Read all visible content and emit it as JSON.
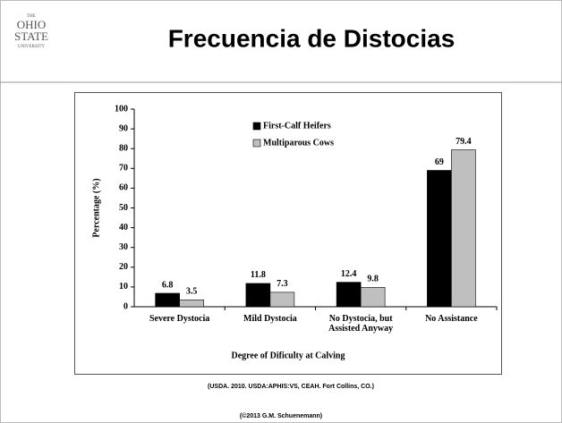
{
  "slide": {
    "logo": [
      "THE",
      "OHIO",
      "STATE",
      "UNIVERSITY"
    ],
    "title": "Frecuencia de Distocias",
    "source": "(USDA. 2010. USDA:APHIS:VS, CEAH. Fort Collins, CO.)",
    "copyright": "(©2013 G.M. Schuenemann)"
  },
  "chart_data": {
    "type": "bar",
    "ylabel": "Percentage (%)",
    "xlabel": "Degree of Dificulty at Calving",
    "categories": [
      "Severe Dystocia",
      "Mild Dystocia",
      "No Dystocia, but Assisted Anyway",
      "No Assistance"
    ],
    "series": [
      {
        "name": "First-Calf Heifers",
        "color": "#000000",
        "values": [
          6.8,
          11.8,
          12.4,
          69
        ]
      },
      {
        "name": "Multiparous Cows",
        "color": "#bfbfbf",
        "values": [
          3.5,
          7.3,
          9.8,
          79.4
        ]
      }
    ],
    "ylim": [
      0,
      100
    ],
    "yticks": [
      0,
      10,
      20,
      30,
      40,
      50,
      60,
      70,
      80,
      90,
      100
    ],
    "legend": "top-left"
  }
}
